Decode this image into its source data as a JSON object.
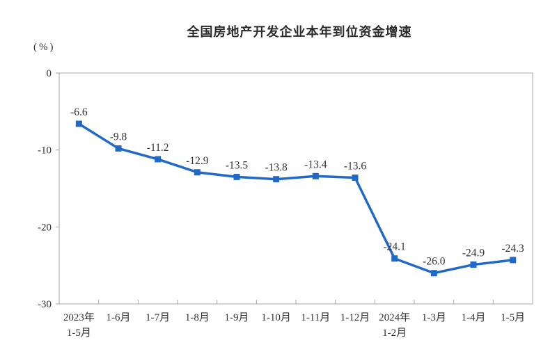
{
  "chart_data": {
    "type": "line",
    "title": "全国房地产开发企业本年到位资金增速",
    "ylabel": "(%)",
    "xlabel": "",
    "categories": [
      "2023年\n1-5月",
      "1-6月",
      "1-7月",
      "1-8月",
      "1-9月",
      "1-10月",
      "1-11月",
      "1-12月",
      "2024年\n1-2月",
      "1-3月",
      "1-4月",
      "1-5月"
    ],
    "values": [
      -6.6,
      -9.8,
      -11.2,
      -12.9,
      -13.5,
      -13.8,
      -13.4,
      -13.6,
      -24.1,
      -26.0,
      -24.9,
      -24.3
    ],
    "point_labels": [
      "-6.6",
      "-9.8",
      "-11.2",
      "-12.9",
      "-13.5",
      "-13.8",
      "-13.4",
      "-13.6",
      "-24.1",
      "-26.0",
      "-24.9",
      "-24.3"
    ],
    "ylim": [
      -30,
      0
    ],
    "yticks": [
      0,
      -10,
      -20,
      -30
    ],
    "grid": "off",
    "legend": "none",
    "marker": "square",
    "line_color": "#2169C8",
    "axis_color": "#A6A6A6",
    "text_color": "#333333"
  }
}
